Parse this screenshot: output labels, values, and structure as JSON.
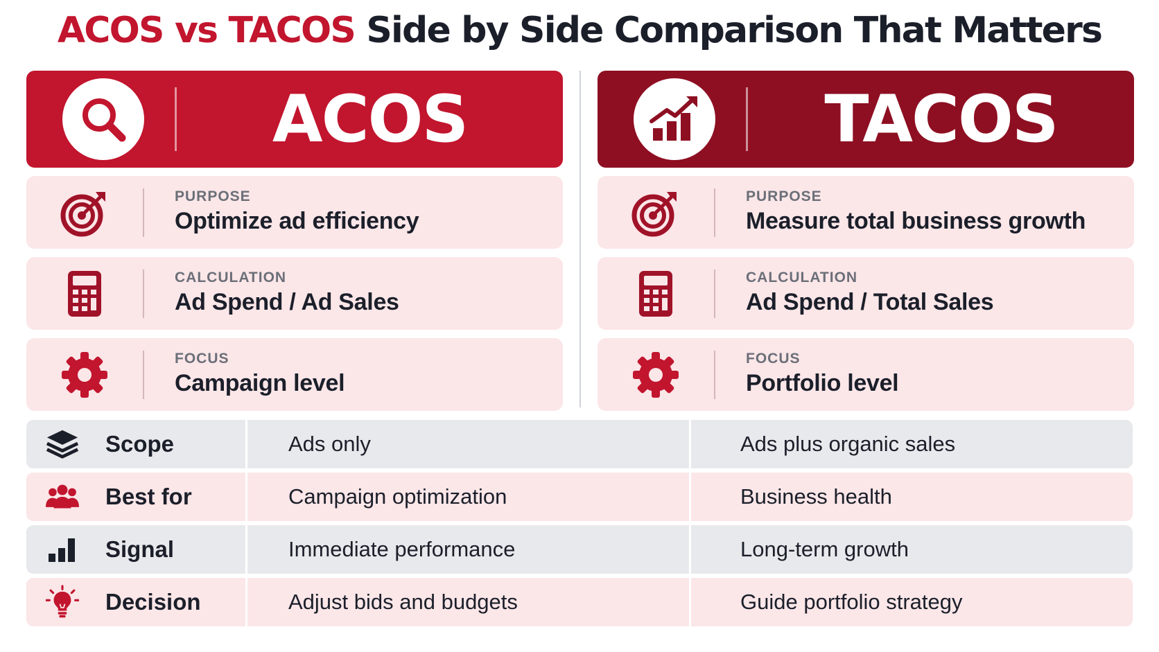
{
  "title": {
    "highlight": "ACOS vs TACOS",
    "rest": " Side by Side Comparison That Matters"
  },
  "colors": {
    "acos_red": "#c2152e",
    "tacos_dark_red": "#8e0f22",
    "card_pink": "#fbe6e8",
    "row_gray": "#e8e9ec",
    "text_dark": "#1b1f2a",
    "label_gray": "#6b6f78"
  },
  "acos": {
    "name": "ACOS",
    "icon": "magnifier-icon",
    "cards": [
      {
        "icon": "target-icon",
        "label": "PURPOSE",
        "value": "Optimize ad efficiency"
      },
      {
        "icon": "calculator-icon",
        "label": "CALCULATION",
        "value": "Ad Spend / Ad Sales"
      },
      {
        "icon": "gear-icon",
        "label": "FOCUS",
        "value": "Campaign level"
      }
    ]
  },
  "tacos": {
    "name": "TACOS",
    "icon": "growth-chart-icon",
    "cards": [
      {
        "icon": "target-icon",
        "label": "PURPOSE",
        "value": "Measure total business growth"
      },
      {
        "icon": "calculator-icon",
        "label": "CALCULATION",
        "value": "Ad Spend / Total Sales"
      },
      {
        "icon": "gear-icon",
        "label": "FOCUS",
        "value": "Portfolio level"
      }
    ]
  },
  "table": {
    "rows": [
      {
        "icon": "layers-icon",
        "key": "Scope",
        "acos": "Ads only",
        "tacos": "Ads plus organic sales"
      },
      {
        "icon": "people-icon",
        "key": "Best for",
        "acos": "Campaign optimization",
        "tacos": "Business health"
      },
      {
        "icon": "bar-signal-icon",
        "key": "Signal",
        "acos": "Immediate  performance",
        "tacos": "Long-term growth"
      },
      {
        "icon": "lightbulb-icon",
        "key": "Decision",
        "acos": "Adjust bids and budgets",
        "tacos": "Guide portfolio strategy"
      }
    ]
  }
}
